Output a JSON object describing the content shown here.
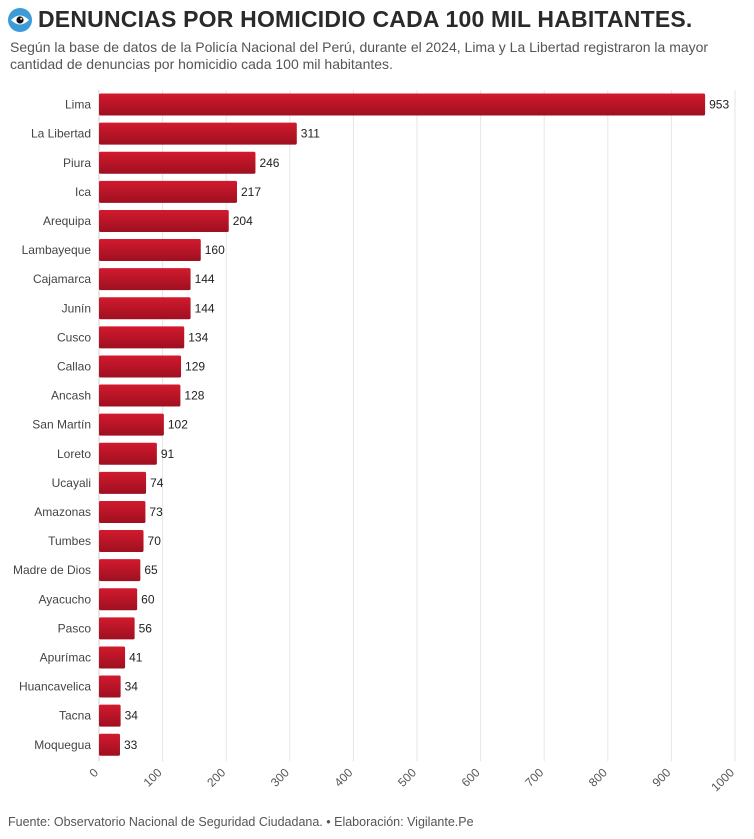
{
  "header": {
    "title": "DENUNCIAS POR HOMICIDIO CADA 100 MIL HABITANTES.",
    "subtitle": "Según la base de datos de la Policía Nacional del Perú, durante el 2024, Lima y La Libertad registraron la mayor cantidad de denuncias por homicidio cada 100 mil habitantes."
  },
  "footer": {
    "source": "Fuente: Observatorio Nacional de Seguridad Ciudadana. • Elaboración: Vigilante.Pe"
  },
  "icons": {
    "title_icon": "eye-icon"
  },
  "colors": {
    "bar": "#d21a2e",
    "bar_shadow": "#9e1020",
    "grid": "#e6e6e6",
    "eye": "#3b9bd6"
  },
  "chart_data": {
    "type": "bar",
    "orientation": "horizontal",
    "title": "DENUNCIAS POR HOMICIDIO CADA 100 MIL HABITANTES.",
    "xlabel": "",
    "ylabel": "",
    "categories": [
      "Lima",
      "La Libertad",
      "Piura",
      "Ica",
      "Arequipa",
      "Lambayeque",
      "Cajamarca",
      "Junín",
      "Cusco",
      "Callao",
      "Ancash",
      "San Martín",
      "Loreto",
      "Ucayali",
      "Amazonas",
      "Tumbes",
      "Madre de Dios",
      "Ayacucho",
      "Pasco",
      "Apurímac",
      "Huancavelica",
      "Tacna",
      "Moquegua"
    ],
    "values": [
      953,
      311,
      246,
      217,
      204,
      160,
      144,
      144,
      134,
      129,
      128,
      102,
      91,
      74,
      73,
      70,
      65,
      60,
      56,
      41,
      34,
      34,
      33
    ],
    "xlim": [
      0,
      1000
    ],
    "xticks": [
      0,
      100,
      200,
      300,
      400,
      500,
      600,
      700,
      800,
      900,
      1000
    ],
    "grid": true,
    "data_labels": true
  }
}
